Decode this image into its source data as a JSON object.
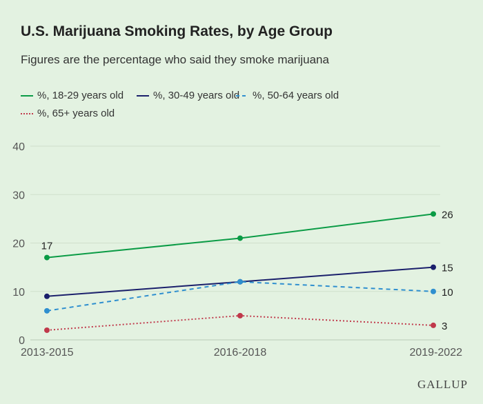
{
  "chart_data": {
    "type": "line",
    "title": "U.S. Marijuana Smoking Rates, by Age Group",
    "subtitle": "Figures are the percentage who said they smoke marijuana",
    "categories": [
      "2013-2015",
      "2016-2018",
      "2019-2022"
    ],
    "ylim": [
      0,
      40
    ],
    "yticks": [
      0,
      10,
      20,
      30,
      40
    ],
    "grid": true,
    "legend_position": "top-left",
    "series": [
      {
        "name": "%, 18-29 years old",
        "values": [
          17,
          21,
          26
        ],
        "color": "#0a9b45",
        "dash": "solid",
        "labels": [
          "17",
          "",
          "26"
        ]
      },
      {
        "name": "%, 30-49 years old",
        "values": [
          9,
          12,
          15
        ],
        "color": "#1a1f6b",
        "dash": "solid",
        "labels": [
          "",
          "",
          "15"
        ]
      },
      {
        "name": "%, 50-64 years old",
        "values": [
          6,
          12,
          10
        ],
        "color": "#2f8fcf",
        "dash": "dashed",
        "labels": [
          "",
          "",
          "10"
        ]
      },
      {
        "name": "%, 65+ years old",
        "values": [
          2,
          5,
          3
        ],
        "color": "#c0394b",
        "dash": "dotted",
        "labels": [
          "",
          "",
          "3"
        ]
      }
    ]
  },
  "brand": "GALLUP"
}
